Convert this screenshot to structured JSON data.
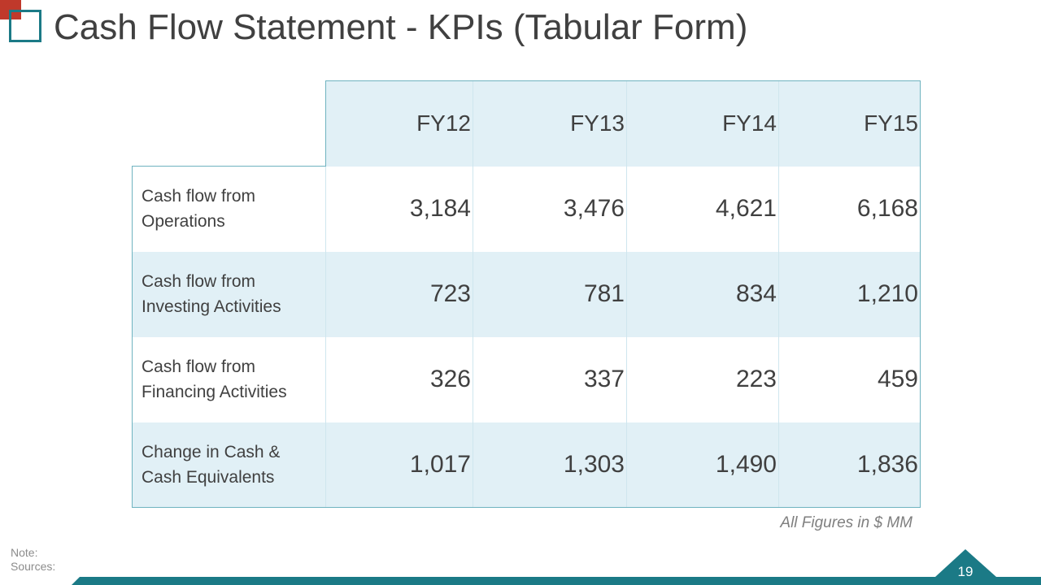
{
  "slide": {
    "title": "Cash Flow Statement - KPIs (Tabular Form)",
    "page_number": "19",
    "note_label": "Note:",
    "sources_label": "Sources:",
    "figures_note": "All Figures in $ MM"
  },
  "table": {
    "headers": [
      "FY12",
      "FY13",
      "FY14",
      "FY15"
    ],
    "rows": [
      {
        "label_line1": "Cash flow from",
        "label_line2": "Operations",
        "values": [
          "3,184",
          "3,476",
          "4,621",
          "6,168"
        ]
      },
      {
        "label_line1": "Cash flow from",
        "label_line2": "Investing Activities",
        "values": [
          "723",
          "781",
          "834",
          "1,210"
        ]
      },
      {
        "label_line1": "Cash flow from",
        "label_line2": "Financing Activities",
        "values": [
          "326",
          "337",
          "223",
          "459"
        ]
      },
      {
        "label_line1": "Change in Cash &",
        "label_line2": "Cash Equivalents",
        "values": [
          "1,017",
          "1,303",
          "1,490",
          "1,836"
        ]
      }
    ]
  },
  "colors": {
    "accent_teal": "#1b7a86",
    "accent_red": "#c0392b",
    "table_tint": "#e1f0f6",
    "text": "#404040"
  }
}
